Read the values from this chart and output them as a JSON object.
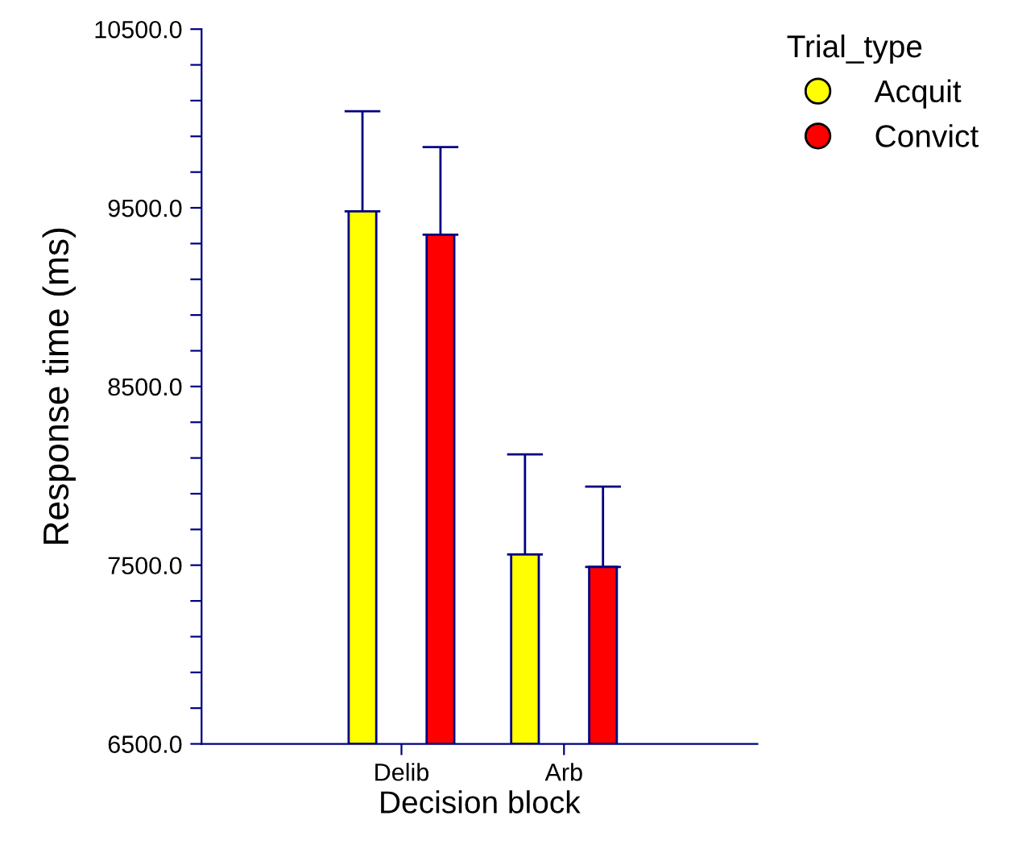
{
  "chart_data": {
    "type": "bar",
    "xlabel": "Decision block",
    "ylabel": "Response time (ms)",
    "legend_title": "Trial_type",
    "legend": "top right",
    "marker": "circle",
    "categories": [
      "Delib",
      "Arb"
    ],
    "series": [
      {
        "name": "Acquit",
        "color": "#ffff00",
        "values": [
          9480,
          7560
        ],
        "errors": [
          [
            9480,
            10040
          ],
          [
            7560,
            8120
          ]
        ]
      },
      {
        "name": "Convict",
        "color": "#ff0000",
        "values": [
          9350,
          7490
        ],
        "errors": [
          [
            9350,
            9840
          ],
          [
            7490,
            7940
          ]
        ]
      }
    ],
    "ylim": [
      6500,
      10500
    ],
    "yticks": [
      {
        "value": 6500,
        "label": "6500.0"
      },
      {
        "value": 6700,
        "label": null
      },
      {
        "value": 6900,
        "label": null
      },
      {
        "value": 7100,
        "label": null
      },
      {
        "value": 7300,
        "label": null
      },
      {
        "value": 7500,
        "label": "7500.0"
      },
      {
        "value": 7700,
        "label": null
      },
      {
        "value": 7900,
        "label": null
      },
      {
        "value": 8100,
        "label": null
      },
      {
        "value": 8300,
        "label": null
      },
      {
        "value": 8500,
        "label": "8500.0"
      },
      {
        "value": 8700,
        "label": null
      },
      {
        "value": 8900,
        "label": null
      },
      {
        "value": 9100,
        "label": null
      },
      {
        "value": 9300,
        "label": null
      },
      {
        "value": 9500,
        "label": "9500.0"
      },
      {
        "value": 9700,
        "label": null
      },
      {
        "value": 9900,
        "label": null
      },
      {
        "value": 10100,
        "label": null
      },
      {
        "value": 10300,
        "label": null
      },
      {
        "value": 10500,
        "label": "10500.0"
      }
    ],
    "grid": false
  }
}
